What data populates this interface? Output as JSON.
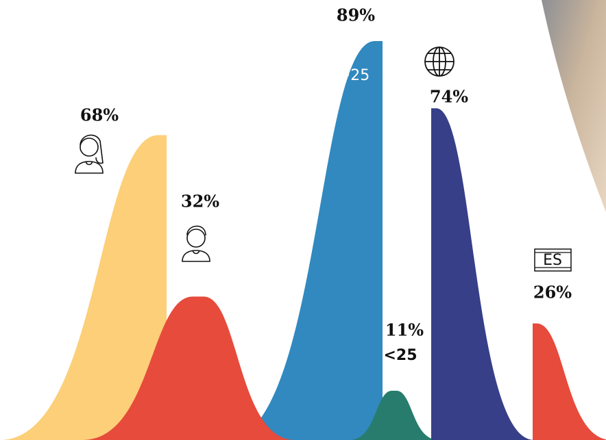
{
  "chart_data": {
    "type": "bell",
    "values": [
      68,
      32,
      89,
      11,
      74,
      26
    ],
    "value_labels": [
      "68%",
      "32%",
      "89%",
      "11%",
      "74%",
      "26%"
    ],
    "colors": [
      "#fccf78",
      "#e64b3b",
      "#3189bf",
      "#277c6d",
      "#373f88",
      "#e64b3b"
    ],
    "annotations": [
      ">25",
      "<25",
      "ES"
    ]
  }
}
